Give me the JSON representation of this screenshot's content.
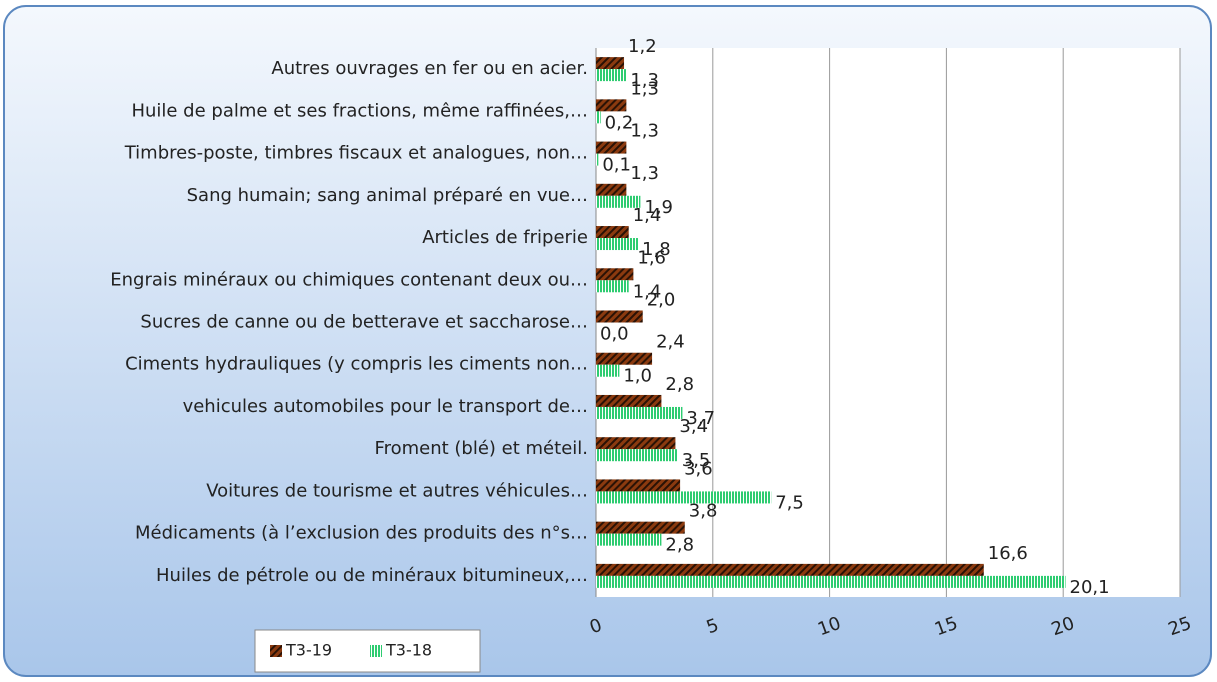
{
  "chart_data": {
    "type": "hbar",
    "categories": [
      "Autres ouvrages en fer ou en acier.",
      "Huile de palme et ses fractions, même raffinées,…",
      "Timbres-poste, timbres fiscaux et analogues, non…",
      "Sang humain; sang animal préparé en vue…",
      "Articles de friperie",
      "Engrais minéraux ou chimiques contenant deux ou…",
      "Sucres de canne ou de betterave et saccharose…",
      "Ciments hydrauliques (y compris les ciments non…",
      "vehicules automobiles pour le transport de…",
      "Froment (blé) et méteil.",
      "Voitures de tourisme et autres véhicules…",
      "Médicaments (à l’exclusion des produits des n°s…",
      "Huiles de pétrole ou de minéraux bitumineux,…"
    ],
    "series": [
      {
        "name": "T3-19",
        "color": "#8b3a0f",
        "values": [
          1.2,
          1.3,
          1.3,
          1.3,
          1.4,
          1.6,
          2.0,
          2.4,
          2.8,
          3.4,
          3.6,
          3.8,
          16.6
        ],
        "value_labels": [
          "1,2",
          "1,3",
          "1,3",
          "1,3",
          "1,4",
          "1,6",
          "2,0",
          "2,4",
          "2,8",
          "3,4",
          "3,6",
          "3,8",
          "16,6"
        ]
      },
      {
        "name": "T3-18",
        "color": "#2ecc71",
        "values": [
          1.3,
          0.2,
          0.1,
          1.9,
          1.8,
          1.4,
          0.0,
          1.0,
          3.7,
          3.5,
          7.5,
          2.8,
          20.1
        ],
        "value_labels": [
          "1,3",
          "0,2",
          "0,1",
          "1,9",
          "1,8",
          "1,4",
          "0,0",
          "1,0",
          "3,7",
          "3,5",
          "7,5",
          "2,8",
          "20,1"
        ]
      }
    ],
    "xlim": [
      0,
      25
    ],
    "xticks": [
      0,
      5,
      10,
      15,
      20,
      25
    ],
    "grid": true,
    "legend": "bottom-left"
  }
}
